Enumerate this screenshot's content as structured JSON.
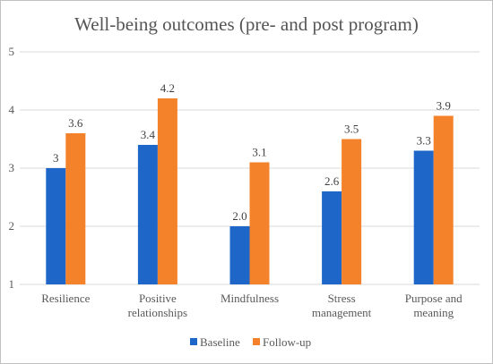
{
  "chart_data": {
    "type": "bar",
    "title": "Well-being outcomes (pre- and post program)",
    "categories": [
      "Resilience",
      "Positive relationships",
      "Mindfulness",
      "Stress management",
      "Purpose and meaning"
    ],
    "category_lines": [
      [
        "Resilience"
      ],
      [
        "Positive",
        "relationships"
      ],
      [
        "Mindfulness"
      ],
      [
        "Stress",
        "management"
      ],
      [
        "Purpose and",
        "meaning"
      ]
    ],
    "series": [
      {
        "name": "Baseline",
        "values": [
          3.0,
          3.4,
          2.0,
          2.6,
          3.3
        ],
        "labels": [
          "3",
          "3.4",
          "2.0",
          "2.6",
          "3.3"
        ],
        "color": "#1f66c9"
      },
      {
        "name": "Follow-up",
        "values": [
          3.6,
          4.2,
          3.1,
          3.5,
          3.9
        ],
        "labels": [
          "3.6",
          "4.2",
          "3.1",
          "3.5",
          "3.9"
        ],
        "color": "#f4822a"
      }
    ],
    "ylim": [
      1,
      5
    ],
    "yticks": [
      "1",
      "2",
      "3",
      "4",
      "5"
    ],
    "grid": true,
    "legend_position": "bottom",
    "border_color": "#c0c0c0"
  }
}
